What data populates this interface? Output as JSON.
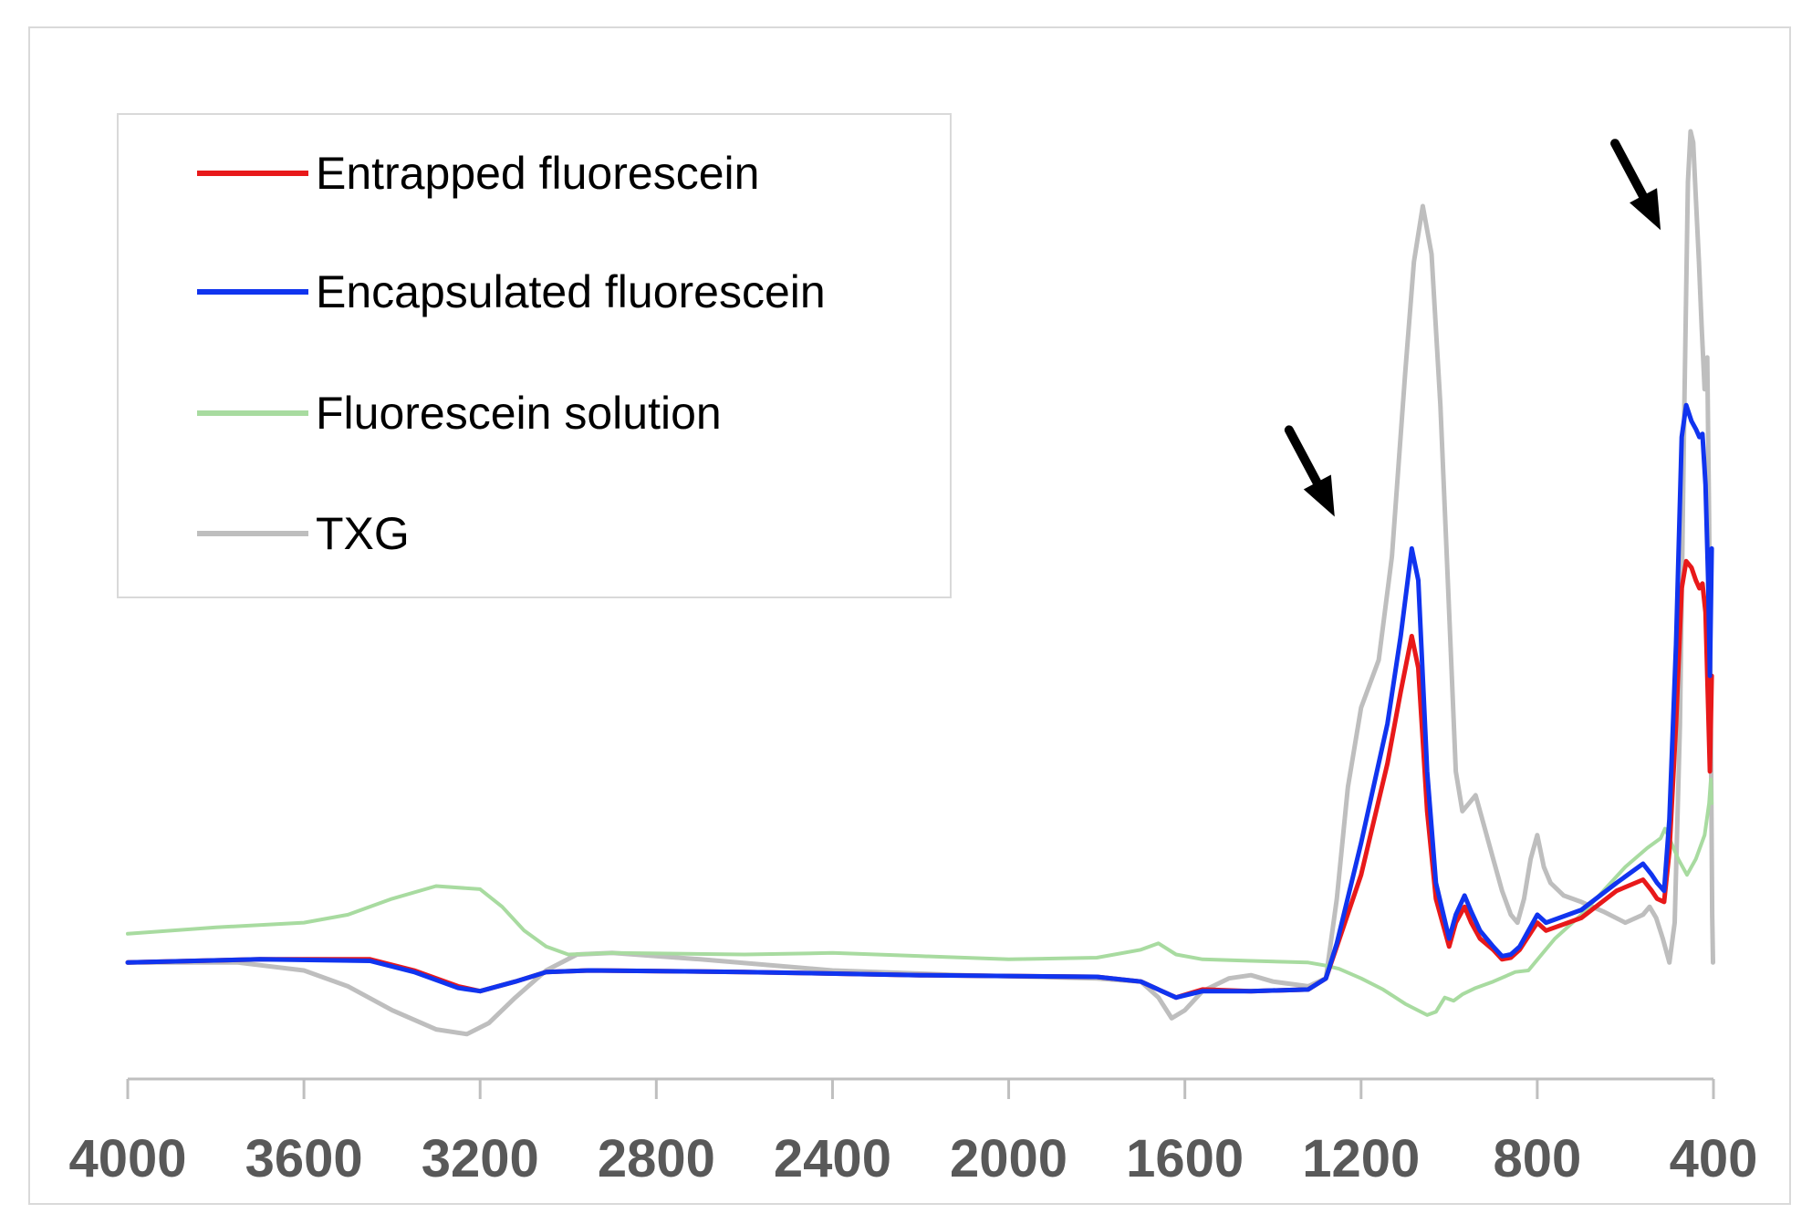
{
  "chart_data": {
    "type": "line",
    "title": "",
    "xlabel": "",
    "ylabel": "",
    "x_reversed": true,
    "xlim": [
      4000,
      400
    ],
    "ylim": [
      -0.6,
      5.3
    ],
    "x_ticks": [
      4000,
      3600,
      3200,
      2800,
      2400,
      2000,
      1600,
      1200,
      800,
      400
    ],
    "grid": false,
    "legend_position": "top-left",
    "series": [
      {
        "name": "Entrapped fluorescein",
        "color": "#e8191a",
        "x": [
          4000,
          3700,
          3450,
          3350,
          3250,
          3200,
          3120,
          3050,
          2950,
          2600,
          2200,
          1800,
          1700,
          1620,
          1560,
          1450,
          1320,
          1280,
          1255,
          1200,
          1140,
          1110,
          1085,
          1070,
          1050,
          1030,
          1000,
          985,
          965,
          950,
          930,
          900,
          880,
          860,
          840,
          800,
          780,
          760,
          700,
          620,
          560,
          540,
          528,
          512,
          500,
          485,
          472,
          462,
          450,
          440,
          432,
          425,
          418,
          412,
          408,
          404
        ],
        "y": [
          0,
          0.02,
          0.02,
          -0.05,
          -0.15,
          -0.18,
          -0.12,
          -0.06,
          -0.05,
          -0.06,
          -0.08,
          -0.09,
          -0.12,
          -0.22,
          -0.17,
          -0.18,
          -0.17,
          -0.1,
          0.1,
          0.55,
          1.25,
          1.7,
          2.05,
          1.85,
          0.95,
          0.4,
          0.1,
          0.25,
          0.35,
          0.25,
          0.15,
          0.08,
          0.02,
          0.03,
          0.08,
          0.25,
          0.2,
          0.22,
          0.28,
          0.45,
          0.52,
          0.45,
          0.4,
          0.38,
          0.7,
          1.5,
          2.35,
          2.52,
          2.48,
          2.4,
          2.35,
          2.38,
          2.2,
          1.6,
          1.2,
          1.8
        ]
      },
      {
        "name": "Encapsulated fluorescein",
        "color": "#1034ef",
        "x": [
          4000,
          3700,
          3450,
          3350,
          3250,
          3200,
          3120,
          3050,
          2950,
          2600,
          2200,
          1800,
          1700,
          1620,
          1560,
          1450,
          1320,
          1280,
          1255,
          1200,
          1140,
          1110,
          1085,
          1070,
          1050,
          1030,
          1000,
          985,
          965,
          950,
          930,
          900,
          880,
          860,
          840,
          800,
          780,
          760,
          700,
          620,
          560,
          540,
          528,
          512,
          500,
          485,
          472,
          462,
          450,
          440,
          432,
          425,
          418,
          412,
          408,
          404
        ],
        "y": [
          0,
          0.02,
          0.01,
          -0.06,
          -0.16,
          -0.18,
          -0.12,
          -0.06,
          -0.05,
          -0.06,
          -0.08,
          -0.09,
          -0.12,
          -0.22,
          -0.18,
          -0.18,
          -0.17,
          -0.1,
          0.12,
          0.75,
          1.5,
          2.05,
          2.6,
          2.4,
          1.2,
          0.5,
          0.15,
          0.3,
          0.42,
          0.32,
          0.2,
          0.1,
          0.04,
          0.05,
          0.1,
          0.3,
          0.25,
          0.27,
          0.33,
          0.5,
          0.62,
          0.55,
          0.5,
          0.45,
          0.9,
          2.0,
          3.3,
          3.5,
          3.4,
          3.35,
          3.3,
          3.32,
          3.0,
          2.4,
          1.8,
          2.6
        ]
      },
      {
        "name": "Fluorescein solution",
        "color": "#a8dba0",
        "x": [
          4000,
          3800,
          3600,
          3500,
          3400,
          3300,
          3200,
          3150,
          3100,
          3050,
          3000,
          2900,
          2600,
          2400,
          2200,
          2000,
          1800,
          1700,
          1660,
          1620,
          1560,
          1450,
          1320,
          1280,
          1250,
          1200,
          1150,
          1100,
          1050,
          1030,
          1010,
          990,
          970,
          940,
          900,
          850,
          820,
          790,
          760,
          700,
          650,
          600,
          550,
          520,
          510,
          500,
          480,
          460,
          440,
          420,
          410,
          406,
          404
        ],
        "y": [
          0.18,
          0.22,
          0.25,
          0.3,
          0.4,
          0.48,
          0.46,
          0.35,
          0.2,
          0.1,
          0.05,
          0.06,
          0.05,
          0.06,
          0.04,
          0.02,
          0.03,
          0.08,
          0.12,
          0.05,
          0.02,
          0.01,
          0.0,
          -0.02,
          -0.04,
          -0.1,
          -0.17,
          -0.26,
          -0.33,
          -0.31,
          -0.22,
          -0.24,
          -0.2,
          -0.16,
          -0.12,
          -0.06,
          -0.05,
          0.05,
          0.15,
          0.3,
          0.45,
          0.6,
          0.72,
          0.78,
          0.84,
          0.78,
          0.65,
          0.55,
          0.65,
          0.8,
          1.0,
          1.15,
          1.0
        ]
      },
      {
        "name": "TXG",
        "color": "#bebebe",
        "x": [
          4000,
          3750,
          3600,
          3500,
          3400,
          3300,
          3230,
          3180,
          3120,
          3050,
          2980,
          2900,
          2700,
          2400,
          2100,
          1800,
          1700,
          1660,
          1630,
          1600,
          1560,
          1500,
          1450,
          1400,
          1320,
          1280,
          1255,
          1230,
          1200,
          1160,
          1130,
          1100,
          1080,
          1060,
          1040,
          1020,
          1000,
          985,
          970,
          955,
          940,
          920,
          900,
          880,
          860,
          845,
          830,
          815,
          800,
          785,
          770,
          740,
          700,
          650,
          600,
          560,
          545,
          530,
          515,
          500,
          488,
          476,
          466,
          458,
          452,
          446,
          440,
          433,
          427,
          420,
          414,
          410,
          406,
          403,
          401
        ],
        "y": [
          0,
          0,
          -0.05,
          -0.15,
          -0.3,
          -0.42,
          -0.45,
          -0.38,
          -0.22,
          -0.05,
          0.05,
          0.06,
          0.02,
          -0.05,
          -0.08,
          -0.1,
          -0.12,
          -0.22,
          -0.35,
          -0.3,
          -0.18,
          -0.1,
          -0.08,
          -0.12,
          -0.15,
          -0.1,
          0.4,
          1.1,
          1.6,
          1.9,
          2.55,
          3.7,
          4.4,
          4.75,
          4.45,
          3.5,
          2.2,
          1.2,
          0.95,
          1.0,
          1.05,
          0.85,
          0.65,
          0.45,
          0.3,
          0.25,
          0.4,
          0.65,
          0.8,
          0.6,
          0.5,
          0.42,
          0.38,
          0.32,
          0.25,
          0.3,
          0.35,
          0.28,
          0.15,
          0.0,
          0.25,
          1.5,
          3.5,
          4.9,
          5.22,
          5.15,
          4.8,
          4.4,
          4.0,
          3.6,
          3.8,
          2.8,
          1.5,
          0.3,
          0.0
        ]
      }
    ],
    "annotations": [
      {
        "type": "arrow",
        "x": 1260,
        "y": 2.8
      },
      {
        "type": "arrow",
        "x": 520,
        "y": 4.6
      }
    ]
  }
}
